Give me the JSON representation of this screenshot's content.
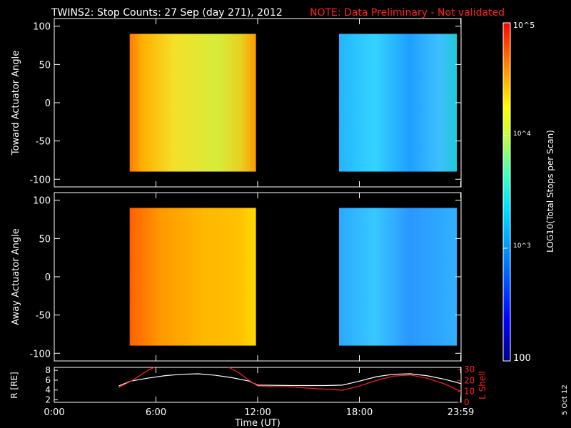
{
  "header": {
    "title": "TWINS2: Stop Counts: 27 Sep (day 271), 2012",
    "note": "NOTE: Data Preliminary - Not validated"
  },
  "stamp": "5 Oct 12",
  "chart_data": [
    {
      "type": "heatmap",
      "panel": "top",
      "ylabel": "Toward Actuator Angle",
      "ylim": [
        -110,
        110
      ],
      "yticks": [
        "100",
        "50",
        "0",
        "-50",
        "-100"
      ],
      "ytick_values": [
        100,
        50,
        0,
        -50,
        -100
      ],
      "xlim_hours": [
        0,
        24
      ],
      "data_blocks_hours": [
        [
          4.45,
          11.9
        ],
        [
          16.8,
          23.75
        ]
      ],
      "angle_range": [
        -90,
        90
      ]
    },
    {
      "type": "heatmap",
      "panel": "middle",
      "ylabel": "Away Actuator Angle",
      "ylim": [
        -110,
        110
      ],
      "yticks": [
        "100",
        "50",
        "0",
        "-50",
        "-100"
      ],
      "ytick_values": [
        100,
        50,
        0,
        -50,
        -100
      ],
      "xlim_hours": [
        0,
        24
      ],
      "data_blocks_hours": [
        [
          4.45,
          11.9
        ],
        [
          16.8,
          23.75
        ]
      ],
      "angle_range": [
        -90,
        90
      ]
    },
    {
      "type": "line",
      "panel": "orbit",
      "ylabel": "R [RE]",
      "ylabel_right": "L Shell",
      "xlabel": "Time (UT)",
      "xticks": [
        "0:00",
        "6:00",
        "12:00",
        "18:00",
        "23:59"
      ],
      "xtick_values": [
        0,
        6,
        12,
        18,
        23.98
      ],
      "yticks_left": [
        "8",
        "6",
        "4",
        "2"
      ],
      "ytick_left_values": [
        8,
        6,
        4,
        2
      ],
      "yticks_right": [
        "30",
        "20",
        "10",
        "0"
      ],
      "ytick_right_values": [
        30,
        20,
        10,
        0
      ],
      "ylim_left": [
        1.5,
        8.6
      ],
      "ylim_right": [
        0,
        32
      ],
      "series": [
        {
          "name": "R",
          "color": "#ffffff",
          "x": [
            3.8,
            4.5,
            5.5,
            6.5,
            7.5,
            8.5,
            9.5,
            10.5,
            11.5,
            12.0,
            14.0,
            16.0,
            17.0,
            18.0,
            19.0,
            20.0,
            21.0,
            22.0,
            23.0,
            24.0
          ],
          "y": [
            4.8,
            5.8,
            6.4,
            6.9,
            7.2,
            7.3,
            7.0,
            6.5,
            5.8,
            5.0,
            4.9,
            4.9,
            5.0,
            5.8,
            6.7,
            7.2,
            7.3,
            6.9,
            6.2,
            5.3
          ]
        },
        {
          "name": "L Shell",
          "color": "#ff2020",
          "segments": [
            {
              "x": [
                3.8,
                4.6,
                5.6,
                5.9
              ],
              "y": [
                13.5,
                20,
                30,
                33
              ]
            },
            {
              "x": [
                10.3,
                10.9,
                11.5,
                12.0,
                14.0,
                16.0,
                17.0,
                18.0,
                19.0,
                20.0,
                21.0,
                22.0,
                23.0,
                24.0
              ],
              "y": [
                33,
                27,
                20,
                15,
                14,
                12,
                11,
                15,
                20,
                24,
                25,
                22,
                17,
                10
              ]
            }
          ]
        }
      ]
    }
  ],
  "colorbar": {
    "label": "LOG10(Total Stops per Scan)",
    "top_label": "10^5",
    "mid_label": "10^4",
    "low_label": "10^3",
    "bottom_label": "100",
    "tick_values": [
      100,
      1000,
      10000,
      100000
    ]
  },
  "colors": {
    "background": "#000000",
    "note": "#ff2020",
    "lshell": "#ff2020"
  }
}
